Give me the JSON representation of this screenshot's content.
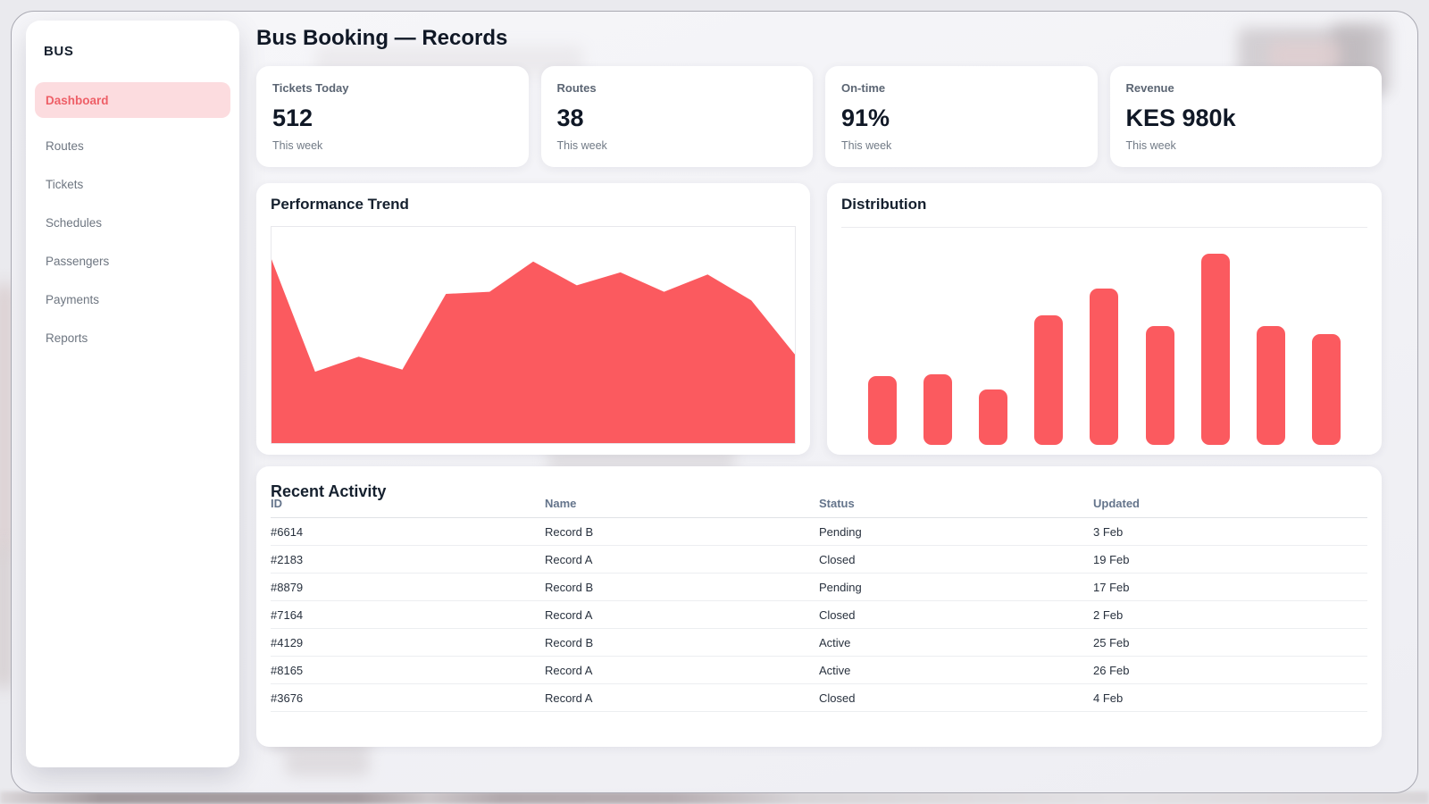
{
  "page": {
    "title": "Bus Booking — Records"
  },
  "sidebar": {
    "brand": "BUS",
    "items": [
      {
        "label": "Dashboard",
        "active": true
      },
      {
        "label": "Routes",
        "active": false
      },
      {
        "label": "Tickets",
        "active": false
      },
      {
        "label": "Schedules",
        "active": false
      },
      {
        "label": "Passengers",
        "active": false
      },
      {
        "label": "Payments",
        "active": false
      },
      {
        "label": "Reports",
        "active": false
      }
    ]
  },
  "stats": [
    {
      "label": "Tickets Today",
      "value": "512",
      "sub": "This week"
    },
    {
      "label": "Routes",
      "value": "38",
      "sub": "This week"
    },
    {
      "label": "On-time",
      "value": "91%",
      "sub": "This week"
    },
    {
      "label": "Revenue",
      "value": "KES 980k",
      "sub": "This week"
    }
  ],
  "chart_data": [
    {
      "type": "area",
      "title": "Performance Trend",
      "x": "13 evenly spaced points, no axis labels shown",
      "values": [
        85,
        33,
        40,
        34,
        69,
        70,
        84,
        73,
        79,
        70,
        78,
        66,
        41
      ],
      "ylim": [
        0,
        100
      ],
      "grid": false,
      "legend": false,
      "color": "#fb5a5f"
    },
    {
      "type": "bar",
      "title": "Distribution",
      "x": "9 unlabeled categories",
      "values": [
        36,
        37,
        29,
        68,
        82,
        62,
        100,
        62,
        58
      ],
      "ylim": [
        0,
        110
      ],
      "grid": false,
      "legend": false,
      "color": "#fb5a5f"
    }
  ],
  "table": {
    "title": "Recent Activity",
    "columns": [
      "ID",
      "Name",
      "Status",
      "Updated"
    ],
    "rows": [
      [
        "#6614",
        "Record B",
        "Pending",
        "3 Feb"
      ],
      [
        "#2183",
        "Record A",
        "Closed",
        "19 Feb"
      ],
      [
        "#8879",
        "Record B",
        "Pending",
        "17 Feb"
      ],
      [
        "#7164",
        "Record A",
        "Closed",
        "2 Feb"
      ],
      [
        "#4129",
        "Record B",
        "Active",
        "25 Feb"
      ],
      [
        "#8165",
        "Record A",
        "Active",
        "26 Feb"
      ],
      [
        "#3676",
        "Record A",
        "Closed",
        "4 Feb"
      ]
    ]
  },
  "colors": {
    "accent": "#fb5a5f",
    "accent_soft_bg": "#fcdcdf",
    "accent_text": "#ee5f67",
    "frame_border": "#a9a9b2"
  }
}
